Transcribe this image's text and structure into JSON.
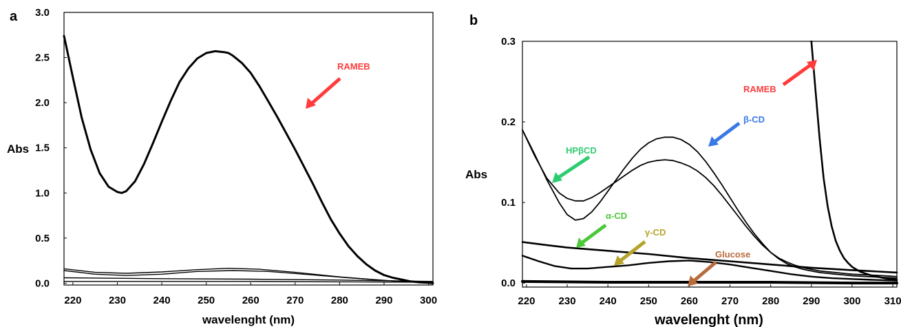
{
  "chart_data": [
    {
      "panel": "a",
      "type": "line",
      "xlabel": "wavelenght (nm)",
      "ylabel": "Abs",
      "xlim": [
        218,
        301
      ],
      "ylim": [
        -0.02,
        3.0
      ],
      "xticks": [
        "220",
        "230",
        "240",
        "250",
        "260",
        "270",
        "280",
        "290",
        "300"
      ],
      "yticks": [
        "0.0",
        "0.5",
        "1.0",
        "1.5",
        "2.0",
        "2.5",
        "3.0"
      ],
      "series": [
        {
          "name": "RAMEB",
          "color": "#000000",
          "x": [
            218,
            220,
            222,
            224,
            226,
            228,
            230,
            231,
            232,
            234,
            236,
            238,
            240,
            242,
            244,
            246,
            248,
            250,
            252,
            254,
            255,
            256,
            258,
            260,
            262,
            264,
            266,
            268,
            270,
            272,
            274,
            276,
            278,
            280,
            282,
            284,
            286,
            288,
            290,
            292,
            294,
            296,
            298,
            300,
            301
          ],
          "y": [
            2.74,
            2.28,
            1.83,
            1.48,
            1.22,
            1.07,
            1.01,
            1.0,
            1.02,
            1.13,
            1.32,
            1.55,
            1.79,
            2.02,
            2.23,
            2.38,
            2.49,
            2.55,
            2.57,
            2.56,
            2.55,
            2.52,
            2.44,
            2.33,
            2.18,
            2.01,
            1.84,
            1.66,
            1.48,
            1.29,
            1.1,
            0.9,
            0.71,
            0.55,
            0.41,
            0.3,
            0.21,
            0.14,
            0.09,
            0.06,
            0.04,
            0.02,
            0.01,
            0.005,
            0.0
          ]
        },
        {
          "name": "",
          "color": "#000000",
          "x": [
            218,
            225,
            232,
            240,
            248,
            255,
            262,
            270,
            280,
            290,
            300,
            301
          ],
          "y": [
            0.16,
            0.12,
            0.11,
            0.125,
            0.15,
            0.165,
            0.155,
            0.12,
            0.07,
            0.03,
            0.01,
            0.0
          ]
        },
        {
          "name": "",
          "color": "#000000",
          "x": [
            218,
            225,
            232,
            240,
            248,
            256,
            264,
            272,
            282,
            292,
            301
          ],
          "y": [
            0.14,
            0.1,
            0.085,
            0.1,
            0.13,
            0.14,
            0.13,
            0.1,
            0.06,
            0.025,
            0.005
          ]
        },
        {
          "name": "",
          "color": "#000000",
          "x": [
            218,
            240,
            260,
            280,
            301
          ],
          "y": [
            0.06,
            0.05,
            0.045,
            0.035,
            0.02
          ]
        },
        {
          "name": "",
          "color": "#000000",
          "x": [
            218,
            240,
            260,
            280,
            301
          ],
          "y": [
            0.02,
            0.02,
            0.02,
            0.015,
            0.01
          ]
        }
      ],
      "annotations": [
        {
          "text": "RAMEB",
          "color": "#ff3b3b"
        }
      ]
    },
    {
      "panel": "b",
      "type": "line",
      "xlabel": "wavelenght (nm)",
      "ylabel": "Abs",
      "xlim": [
        219,
        311
      ],
      "ylim": [
        -0.005,
        0.3
      ],
      "xticks": [
        "220",
        "230",
        "240",
        "250",
        "260",
        "270",
        "280",
        "290",
        "300",
        "310"
      ],
      "yticks": [
        "0.0",
        "0.1",
        "0.2",
        "0.3"
      ],
      "series": [
        {
          "name": "RAMEB",
          "color": "#000000",
          "x": [
            290,
            291,
            292,
            293,
            294,
            295,
            296,
            297,
            298,
            299,
            300,
            302,
            305,
            308,
            311
          ],
          "y": [
            0.3,
            0.24,
            0.18,
            0.13,
            0.095,
            0.07,
            0.052,
            0.04,
            0.031,
            0.025,
            0.02,
            0.014,
            0.009,
            0.006,
            0.004
          ]
        },
        {
          "name": "β-CD",
          "color": "#000000",
          "x": [
            219,
            222,
            225,
            228,
            230,
            232,
            234,
            236,
            238,
            240,
            242,
            244,
            246,
            248,
            250,
            252,
            254,
            256,
            258,
            260,
            262,
            264,
            266,
            268,
            270,
            272,
            274,
            276,
            278,
            280,
            282,
            284,
            286,
            288,
            290,
            292,
            294,
            296,
            298,
            300,
            304,
            308,
            311
          ],
          "y": [
            0.19,
            0.16,
            0.128,
            0.1,
            0.085,
            0.078,
            0.08,
            0.088,
            0.1,
            0.114,
            0.128,
            0.142,
            0.155,
            0.166,
            0.174,
            0.179,
            0.181,
            0.181,
            0.178,
            0.172,
            0.163,
            0.151,
            0.137,
            0.122,
            0.106,
            0.09,
            0.075,
            0.061,
            0.049,
            0.038,
            0.03,
            0.024,
            0.02,
            0.017,
            0.015,
            0.013,
            0.012,
            0.011,
            0.01,
            0.009,
            0.008,
            0.007,
            0.006
          ]
        },
        {
          "name": "HPβCD",
          "color": "#000000",
          "x": [
            219,
            222,
            225,
            228,
            230,
            232,
            234,
            236,
            238,
            240,
            242,
            244,
            246,
            248,
            250,
            252,
            254,
            256,
            258,
            260,
            262,
            264,
            266,
            268,
            270,
            272,
            274,
            276,
            278,
            280,
            282,
            284,
            286,
            288,
            290,
            292,
            294,
            296,
            298,
            300,
            304,
            308,
            311
          ],
          "y": [
            0.19,
            0.158,
            0.13,
            0.112,
            0.105,
            0.102,
            0.102,
            0.106,
            0.112,
            0.119,
            0.126,
            0.133,
            0.14,
            0.146,
            0.15,
            0.152,
            0.153,
            0.152,
            0.149,
            0.145,
            0.139,
            0.131,
            0.121,
            0.109,
            0.096,
            0.083,
            0.07,
            0.058,
            0.047,
            0.038,
            0.031,
            0.026,
            0.022,
            0.019,
            0.017,
            0.015,
            0.014,
            0.013,
            0.012,
            0.011,
            0.01,
            0.009,
            0.008
          ]
        },
        {
          "name": "α-CD",
          "color": "#000000",
          "x": [
            219,
            225,
            230,
            240,
            250,
            260,
            270,
            280,
            290,
            300,
            311
          ],
          "y": [
            0.051,
            0.047,
            0.044,
            0.04,
            0.036,
            0.031,
            0.027,
            0.023,
            0.019,
            0.016,
            0.013
          ]
        },
        {
          "name": "γ-CD",
          "color": "#000000",
          "x": [
            219,
            223,
            227,
            231,
            235,
            240,
            245,
            250,
            255,
            260,
            265,
            270,
            275,
            280,
            285,
            290,
            295,
            300,
            305,
            311
          ],
          "y": [
            0.034,
            0.027,
            0.021,
            0.018,
            0.018,
            0.02,
            0.022,
            0.025,
            0.027,
            0.028,
            0.026,
            0.023,
            0.019,
            0.015,
            0.011,
            0.008,
            0.006,
            0.005,
            0.004,
            0.003
          ]
        },
        {
          "name": "Glucose",
          "color": "#000000",
          "x": [
            219,
            240,
            260,
            280,
            300,
            311
          ],
          "y": [
            0.002,
            0.001,
            0.001,
            0.001,
            0.0,
            0.0
          ]
        }
      ],
      "annotations": [
        {
          "text": "RAMEB",
          "color": "#ff3b3b"
        },
        {
          "text": "β-CD",
          "color": "#3a78e6"
        },
        {
          "text": "HPβCD",
          "color": "#2ecc71"
        },
        {
          "text": "α-CD",
          "color": "#4cc83a"
        },
        {
          "text": "γ-CD",
          "color": "#b5a32a"
        },
        {
          "text": "Glucose",
          "color": "#b86b3d"
        }
      ]
    }
  ]
}
